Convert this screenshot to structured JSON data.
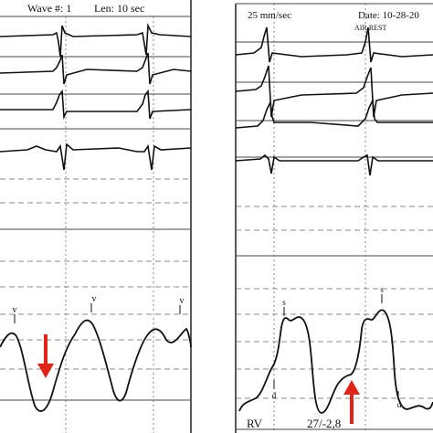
{
  "left_panel": {
    "wave_label": "Wave #: 1",
    "len_label": "Len: 10 sec",
    "peak_marker": "v"
  },
  "right_panel": {
    "speed_label": "25 mm/sec",
    "date_label": "Date: 10-28-20",
    "condition_label": "AIR REST",
    "chamber_label": "RV",
    "pressure_label": "27/-2,8",
    "peak_marker": "s",
    "trough_marker": "d"
  },
  "colors": {
    "trace": "#111111",
    "grid": "#555555",
    "arrow": "#e02418",
    "background": "#ffffff"
  }
}
